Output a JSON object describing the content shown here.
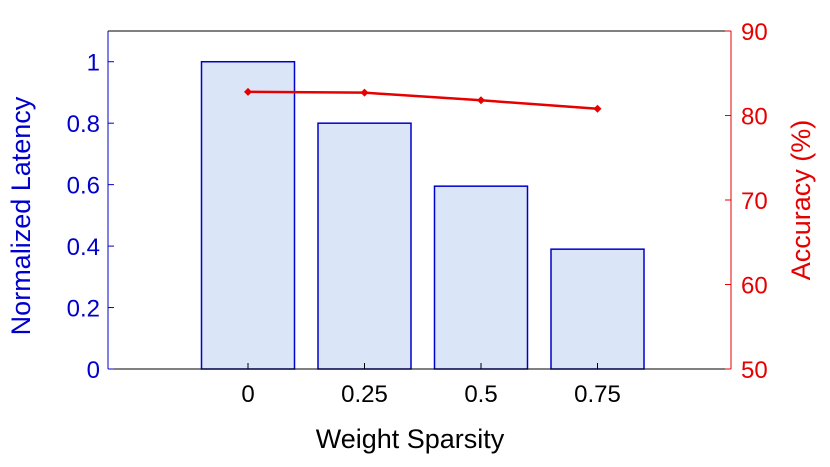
{
  "chart_data": {
    "type": "bar+line",
    "categories": [
      "0",
      "0.25",
      "0.5",
      "0.75"
    ],
    "xlabel": "Weight Sparsity",
    "bar_series": {
      "name": "Normalized Latency",
      "values": [
        1.0,
        0.8,
        0.595,
        0.39
      ],
      "axis": "left"
    },
    "line_series": {
      "name": "Accuracy (%)",
      "values": [
        82.8,
        82.7,
        81.8,
        80.8
      ],
      "axis": "right"
    },
    "left_axis": {
      "label": "Normalized Latency",
      "ylim": [
        0,
        1.1
      ],
      "ticks": [
        0,
        0.2,
        0.4,
        0.6,
        0.8,
        1
      ],
      "tick_labels": [
        "0",
        "0.2",
        "0.4",
        "0.6",
        "0.8",
        "1"
      ]
    },
    "right_axis": {
      "label": "Accuracy (%)",
      "ylim": [
        50,
        90
      ],
      "ticks": [
        50,
        60,
        70,
        80,
        90
      ],
      "tick_labels": [
        "50",
        "60",
        "70",
        "80",
        "90"
      ]
    },
    "grid": false,
    "colors": {
      "bar_fill": "#dae6f8",
      "bar_edge": "#0000cc",
      "left_axis": "#0000cc",
      "right_axis": "#e60000",
      "line": "#e60000",
      "frame": "#000000"
    }
  }
}
